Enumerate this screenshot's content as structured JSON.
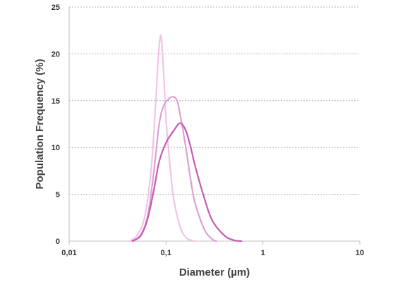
{
  "chart_data": {
    "type": "line",
    "title": "",
    "xlabel": "Diameter (µm)",
    "ylabel": "Population Frequency (%)",
    "x_scale": "log",
    "xlim": [
      0.01,
      10
    ],
    "ylim": [
      0,
      25
    ],
    "x_ticks": [
      0.01,
      0.1,
      1,
      10
    ],
    "x_tick_labels": [
      "0,01",
      "0,1",
      "1",
      "10"
    ],
    "y_ticks": [
      0,
      5,
      10,
      15,
      20,
      25
    ],
    "y_tick_labels": [
      "0",
      "5",
      "10",
      "15",
      "20",
      "25"
    ],
    "grid": "horizontal dotted",
    "legend": "none",
    "series": [
      {
        "color": "#f0c4e6",
        "x": [
          0.042,
          0.05,
          0.06,
          0.07,
          0.078,
          0.083,
          0.087,
          0.09,
          0.095,
          0.1,
          0.11,
          0.12,
          0.14,
          0.16,
          0.18,
          0.2
        ],
        "y": [
          0,
          0.6,
          2.5,
          7.5,
          14.5,
          19.5,
          21.7,
          21.5,
          17.5,
          13,
          8,
          4.5,
          1.5,
          0.4,
          0.1,
          0
        ]
      },
      {
        "color": "#df9fd6",
        "x": [
          0.045,
          0.055,
          0.065,
          0.075,
          0.085,
          0.095,
          0.11,
          0.12,
          0.13,
          0.14,
          0.16,
          0.18,
          0.2,
          0.25,
          0.3,
          0.33
        ],
        "y": [
          0,
          0.7,
          2.8,
          7.5,
          12.5,
          14.5,
          15.3,
          15.4,
          15,
          13.5,
          10,
          6.5,
          4,
          1.2,
          0.2,
          0
        ]
      },
      {
        "color": "#c55bb5",
        "x": [
          0.045,
          0.055,
          0.065,
          0.075,
          0.085,
          0.1,
          0.12,
          0.14,
          0.16,
          0.18,
          0.2,
          0.25,
          0.3,
          0.4,
          0.5,
          0.6
        ],
        "y": [
          0,
          0.6,
          2.5,
          5.5,
          8.5,
          10.5,
          11.8,
          12.6,
          11.8,
          10,
          8,
          4.5,
          2.2,
          0.6,
          0.1,
          0
        ]
      }
    ]
  }
}
